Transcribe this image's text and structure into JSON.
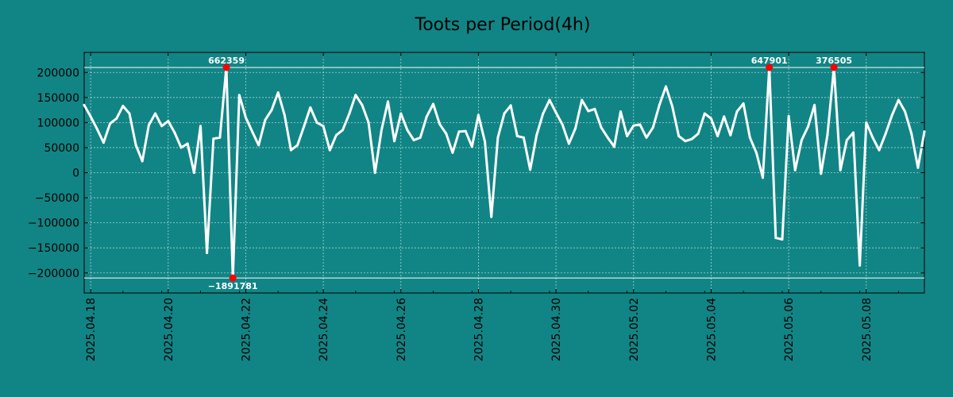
{
  "chart_data": {
    "type": "line",
    "title": "Toots per Period(4h)",
    "xlabel": "",
    "ylabel": "",
    "ylim": [
      -240000,
      240000
    ],
    "xlim": [
      "2025-04-17T20:00",
      "2025-05-09T12:00"
    ],
    "period_hours": 4,
    "grid": true,
    "colors": {
      "background": "#118585",
      "line": "#ffffff",
      "marker": "#ff0000",
      "grid": "#d8ecec",
      "axis": "#000000"
    },
    "y_ticks": [
      {
        "value": 200000,
        "label": "200000"
      },
      {
        "value": 150000,
        "label": "150000"
      },
      {
        "value": 100000,
        "label": "100000"
      },
      {
        "value": 50000,
        "label": "50000"
      },
      {
        "value": 0,
        "label": "0"
      },
      {
        "value": -50000,
        "label": "−50000"
      },
      {
        "value": -100000,
        "label": "−100000"
      },
      {
        "value": -150000,
        "label": "−150000"
      },
      {
        "value": -200000,
        "label": "−200000"
      }
    ],
    "x_ticks": [
      {
        "date": "2025-04-18T00:00",
        "label": "2025.04.18"
      },
      {
        "date": "2025-04-20T00:00",
        "label": "2025.04.20"
      },
      {
        "date": "2025-04-22T00:00",
        "label": "2025.04.22"
      },
      {
        "date": "2025-04-24T00:00",
        "label": "2025.04.24"
      },
      {
        "date": "2025-04-26T00:00",
        "label": "2025.04.26"
      },
      {
        "date": "2025-04-28T00:00",
        "label": "2025.04.28"
      },
      {
        "date": "2025-04-30T00:00",
        "label": "2025.04.30"
      },
      {
        "date": "2025-05-02T00:00",
        "label": "2025.05.02"
      },
      {
        "date": "2025-05-04T00:00",
        "label": "2025.05.04"
      },
      {
        "date": "2025-05-06T00:00",
        "label": "2025.05.06"
      },
      {
        "date": "2025-05-08T00:00",
        "label": "2025.05.08"
      }
    ],
    "clip_lines": [
      210000,
      -210000
    ],
    "series": [
      {
        "values": [
          [
            "2025-04-17T20:00",
            135000
          ],
          [
            "2025-04-18T00:00",
            112000
          ],
          [
            "2025-04-18T04:00",
            87000
          ],
          [
            "2025-04-18T08:00",
            60000
          ],
          [
            "2025-04-18T12:00",
            98000
          ],
          [
            "2025-04-18T16:00",
            108000
          ],
          [
            "2025-04-18T20:00",
            133000
          ],
          [
            "2025-04-19T00:00",
            118000
          ],
          [
            "2025-04-19T04:00",
            55000
          ],
          [
            "2025-04-19T08:00",
            23000
          ],
          [
            "2025-04-19T12:00",
            95000
          ],
          [
            "2025-04-19T16:00",
            118000
          ],
          [
            "2025-04-19T20:00",
            93000
          ],
          [
            "2025-04-20T00:00",
            103000
          ],
          [
            "2025-04-20T04:00",
            80000
          ],
          [
            "2025-04-20T08:00",
            50000
          ],
          [
            "2025-04-20T12:00",
            58000
          ],
          [
            "2025-04-20T16:00",
            0
          ],
          [
            "2025-04-20T20:00",
            93000
          ],
          [
            "2025-04-21T00:00",
            -160000
          ],
          [
            "2025-04-21T04:00",
            68000
          ],
          [
            "2025-04-21T08:00",
            70000
          ],
          [
            "2025-04-21T12:00",
            210000
          ],
          [
            "2025-04-21T16:00",
            -210000
          ],
          [
            "2025-04-21T20:00",
            155000
          ],
          [
            "2025-04-22T00:00",
            110000
          ],
          [
            "2025-04-22T04:00",
            82000
          ],
          [
            "2025-04-22T08:00",
            55000
          ],
          [
            "2025-04-22T12:00",
            105000
          ],
          [
            "2025-04-22T16:00",
            125000
          ],
          [
            "2025-04-22T20:00",
            160000
          ],
          [
            "2025-04-23T00:00",
            115000
          ],
          [
            "2025-04-23T04:00",
            45000
          ],
          [
            "2025-04-23T08:00",
            55000
          ],
          [
            "2025-04-23T12:00",
            92000
          ],
          [
            "2025-04-23T16:00",
            130000
          ],
          [
            "2025-04-23T20:00",
            100000
          ],
          [
            "2025-04-24T00:00",
            93000
          ],
          [
            "2025-04-24T04:00",
            45000
          ],
          [
            "2025-04-24T08:00",
            75000
          ],
          [
            "2025-04-24T12:00",
            85000
          ],
          [
            "2025-04-24T16:00",
            117000
          ],
          [
            "2025-04-24T20:00",
            155000
          ],
          [
            "2025-04-25T00:00",
            135000
          ],
          [
            "2025-04-25T04:00",
            100000
          ],
          [
            "2025-04-25T08:00",
            0
          ],
          [
            "2025-04-25T12:00",
            85000
          ],
          [
            "2025-04-25T16:00",
            142000
          ],
          [
            "2025-04-25T20:00",
            63000
          ],
          [
            "2025-04-26T00:00",
            118000
          ],
          [
            "2025-04-26T04:00",
            85000
          ],
          [
            "2025-04-26T08:00",
            65000
          ],
          [
            "2025-04-26T12:00",
            70000
          ],
          [
            "2025-04-26T16:00",
            112000
          ],
          [
            "2025-04-26T20:00",
            137000
          ],
          [
            "2025-04-27T00:00",
            97000
          ],
          [
            "2025-04-27T04:00",
            78000
          ],
          [
            "2025-04-27T08:00",
            40000
          ],
          [
            "2025-04-27T12:00",
            82000
          ],
          [
            "2025-04-27T16:00",
            83000
          ],
          [
            "2025-04-27T20:00",
            52000
          ],
          [
            "2025-04-28T00:00",
            115000
          ],
          [
            "2025-04-28T04:00",
            62000
          ],
          [
            "2025-04-28T08:00",
            -88000
          ],
          [
            "2025-04-28T12:00",
            70000
          ],
          [
            "2025-04-28T16:00",
            118000
          ],
          [
            "2025-04-28T20:00",
            134000
          ],
          [
            "2025-04-29T00:00",
            73000
          ],
          [
            "2025-04-29T04:00",
            70000
          ],
          [
            "2025-04-29T08:00",
            6000
          ],
          [
            "2025-04-29T12:00",
            75000
          ],
          [
            "2025-04-29T16:00",
            118000
          ],
          [
            "2025-04-29T20:00",
            145000
          ],
          [
            "2025-04-30T00:00",
            120000
          ],
          [
            "2025-04-30T04:00",
            96000
          ],
          [
            "2025-04-30T08:00",
            58000
          ],
          [
            "2025-04-30T12:00",
            88000
          ],
          [
            "2025-04-30T16:00",
            145000
          ],
          [
            "2025-04-30T20:00",
            123000
          ],
          [
            "2025-05-01T00:00",
            127000
          ],
          [
            "2025-05-01T04:00",
            90000
          ],
          [
            "2025-05-01T08:00",
            70000
          ],
          [
            "2025-05-01T12:00",
            52000
          ],
          [
            "2025-05-01T16:00",
            122000
          ],
          [
            "2025-05-01T20:00",
            73000
          ],
          [
            "2025-05-02T00:00",
            94000
          ],
          [
            "2025-05-02T04:00",
            96000
          ],
          [
            "2025-05-02T08:00",
            70000
          ],
          [
            "2025-05-02T12:00",
            90000
          ],
          [
            "2025-05-02T16:00",
            135000
          ],
          [
            "2025-05-02T20:00",
            172000
          ],
          [
            "2025-05-03T00:00",
            132000
          ],
          [
            "2025-05-03T04:00",
            73000
          ],
          [
            "2025-05-03T08:00",
            63000
          ],
          [
            "2025-05-03T12:00",
            67000
          ],
          [
            "2025-05-03T16:00",
            78000
          ],
          [
            "2025-05-03T20:00",
            118000
          ],
          [
            "2025-05-04T00:00",
            108000
          ],
          [
            "2025-05-04T04:00",
            73000
          ],
          [
            "2025-05-04T08:00",
            112000
          ],
          [
            "2025-05-04T12:00",
            75000
          ],
          [
            "2025-05-04T16:00",
            122000
          ],
          [
            "2025-05-04T20:00",
            138000
          ],
          [
            "2025-05-05T00:00",
            70000
          ],
          [
            "2025-05-05T04:00",
            40000
          ],
          [
            "2025-05-05T08:00",
            -10000
          ],
          [
            "2025-05-05T12:00",
            210000
          ],
          [
            "2025-05-05T16:00",
            -130000
          ],
          [
            "2025-05-05T20:00",
            -133000
          ],
          [
            "2025-05-06T00:00",
            113000
          ],
          [
            "2025-05-06T04:00",
            5000
          ],
          [
            "2025-05-06T08:00",
            65000
          ],
          [
            "2025-05-06T12:00",
            92000
          ],
          [
            "2025-05-06T16:00",
            135000
          ],
          [
            "2025-05-06T20:00",
            -2000
          ],
          [
            "2025-05-07T00:00",
            75000
          ],
          [
            "2025-05-07T04:00",
            210000
          ],
          [
            "2025-05-07T08:00",
            5000
          ],
          [
            "2025-05-07T12:00",
            65000
          ],
          [
            "2025-05-07T16:00",
            80000
          ],
          [
            "2025-05-07T20:00",
            -185000
          ],
          [
            "2025-05-08T00:00",
            100000
          ],
          [
            "2025-05-08T04:00",
            70000
          ],
          [
            "2025-05-08T08:00",
            45000
          ],
          [
            "2025-05-08T12:00",
            78000
          ],
          [
            "2025-05-08T16:00",
            115000
          ],
          [
            "2025-05-08T20:00",
            145000
          ],
          [
            "2025-05-09T00:00",
            122000
          ],
          [
            "2025-05-09T04:00",
            78000
          ],
          [
            "2025-05-09T08:00",
            10000
          ],
          [
            "2025-05-09T12:00",
            82000
          ]
        ]
      }
    ],
    "annotations": [
      {
        "date": "2025-04-21T12:00",
        "value": 210000,
        "label": "662359",
        "position": "above"
      },
      {
        "date": "2025-04-21T16:00",
        "value": -210000,
        "label": "−1891781",
        "position": "below"
      },
      {
        "date": "2025-05-05T12:00",
        "value": 210000,
        "label": "647901",
        "position": "above"
      },
      {
        "date": "2025-05-07T04:00",
        "value": 210000,
        "label": "376505",
        "position": "above"
      }
    ]
  }
}
